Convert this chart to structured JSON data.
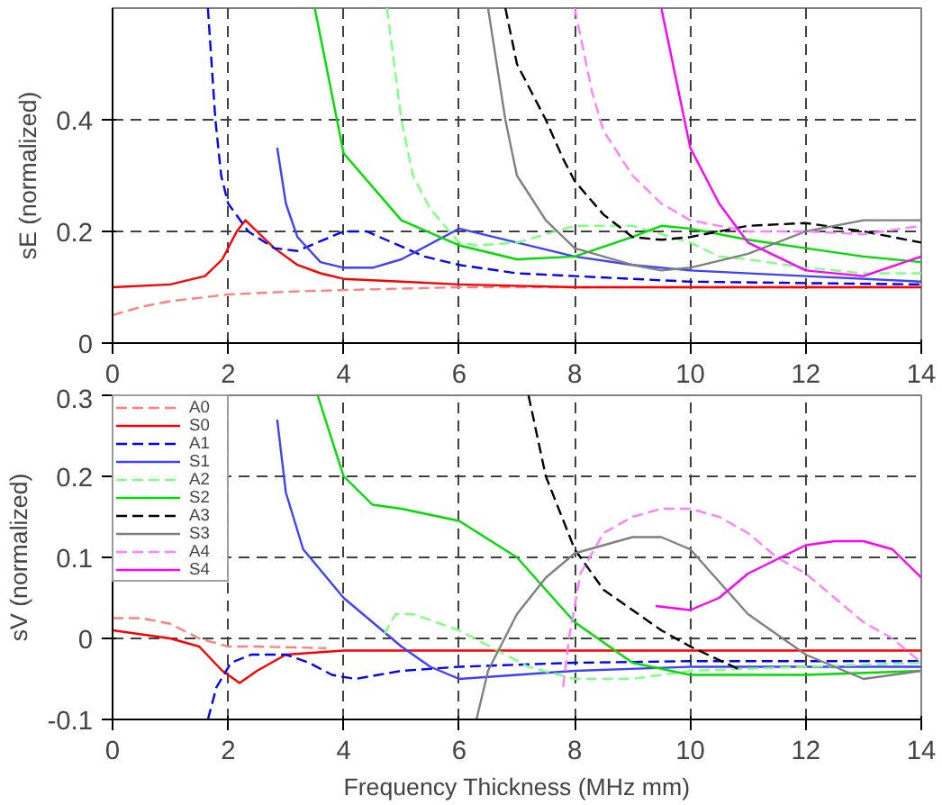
{
  "chart_data": [
    {
      "type": "line",
      "ylabel": "sE (normalized)",
      "xlim": [
        0,
        14
      ],
      "ylim": [
        0,
        0.6
      ],
      "xticks": [
        0,
        2,
        4,
        6,
        8,
        10,
        12,
        14
      ],
      "yticks": [
        0,
        0.2,
        0.4
      ],
      "grid": true,
      "legend": false,
      "series": [
        {
          "color": "#ff8080",
          "line_style": "dashed",
          "x": [
            0,
            0.5,
            1,
            2,
            3,
            4,
            6,
            8,
            10,
            12,
            14
          ],
          "values": [
            0.05,
            0.065,
            0.075,
            0.087,
            0.092,
            0.095,
            0.1,
            0.1,
            0.1,
            0.1,
            0.1
          ]
        },
        {
          "color": "#ff0000",
          "line_style": "solid",
          "x": [
            0,
            1,
            1.6,
            1.9,
            2.15,
            2.3,
            2.5,
            2.8,
            3.2,
            3.6,
            4,
            5,
            6,
            8,
            14
          ],
          "values": [
            0.1,
            0.105,
            0.12,
            0.15,
            0.2,
            0.22,
            0.2,
            0.17,
            0.14,
            0.125,
            0.115,
            0.11,
            0.105,
            0.1,
            0.1
          ]
        },
        {
          "color": "#0000ff",
          "line_style": "dashed",
          "x": [
            1.65,
            1.78,
            1.88,
            2.0,
            2.35,
            2.8,
            3.2,
            4.0,
            4.4,
            5.4,
            6,
            7,
            8,
            10,
            14
          ],
          "values": [
            0.6,
            0.4,
            0.3,
            0.25,
            0.2,
            0.17,
            0.165,
            0.2,
            0.2,
            0.155,
            0.14,
            0.125,
            0.12,
            0.11,
            0.105
          ]
        },
        {
          "color": "#4040ff",
          "line_style": "solid",
          "x": [
            2.85,
            3.0,
            3.2,
            3.6,
            4.0,
            4.5,
            5,
            6,
            7,
            8,
            9,
            10,
            12,
            14
          ],
          "values": [
            0.35,
            0.25,
            0.19,
            0.145,
            0.135,
            0.135,
            0.15,
            0.205,
            0.18,
            0.155,
            0.14,
            0.13,
            0.12,
            0.11
          ]
        },
        {
          "color": "#80ff80",
          "line_style": "dashed",
          "x": [
            4.75,
            5.0,
            5.2,
            5.5,
            6,
            6.3,
            7,
            8,
            9,
            10,
            10.5,
            11,
            12,
            13,
            14
          ],
          "values": [
            0.6,
            0.4,
            0.3,
            0.24,
            0.18,
            0.175,
            0.18,
            0.21,
            0.21,
            0.18,
            0.155,
            0.15,
            0.135,
            0.125,
            0.125
          ]
        },
        {
          "color": "#00dd00",
          "line_style": "solid",
          "x": [
            3.5,
            4,
            5,
            6,
            7,
            8,
            9,
            9.5,
            10,
            11,
            12,
            13,
            14
          ],
          "values": [
            0.6,
            0.34,
            0.22,
            0.175,
            0.15,
            0.155,
            0.19,
            0.21,
            0.205,
            0.185,
            0.17,
            0.155,
            0.145
          ]
        },
        {
          "color": "#000000",
          "line_style": "dashed",
          "x": [
            6.8,
            7,
            7.5,
            7.8,
            8,
            8.5,
            9,
            9.5,
            10,
            11,
            12,
            13,
            14
          ],
          "values": [
            0.6,
            0.5,
            0.4,
            0.33,
            0.29,
            0.23,
            0.19,
            0.185,
            0.19,
            0.21,
            0.215,
            0.2,
            0.18
          ]
        },
        {
          "color": "#808080",
          "line_style": "solid",
          "x": [
            6.5,
            6.8,
            7,
            7.5,
            8,
            9,
            9.5,
            10,
            11,
            12,
            13,
            14
          ],
          "values": [
            0.6,
            0.4,
            0.3,
            0.22,
            0.17,
            0.14,
            0.13,
            0.135,
            0.16,
            0.2,
            0.22,
            0.22
          ]
        },
        {
          "color": "#ff80ff",
          "line_style": "dashed",
          "x": [
            8,
            8.3,
            8.5,
            9,
            9.5,
            10,
            11,
            12,
            13,
            14
          ],
          "values": [
            0.6,
            0.45,
            0.38,
            0.3,
            0.25,
            0.22,
            0.2,
            0.2,
            0.195,
            0.21
          ]
        },
        {
          "color": "#ff00ff",
          "line_style": "solid",
          "x": [
            9.5,
            10,
            10.5,
            11,
            12,
            13,
            14
          ],
          "values": [
            0.6,
            0.35,
            0.25,
            0.18,
            0.13,
            0.12,
            0.155
          ]
        }
      ]
    },
    {
      "type": "line",
      "xlabel": "Frequency Thickness (MHz mm)",
      "ylabel": "sV (normalized)",
      "xlim": [
        0,
        14
      ],
      "ylim": [
        -0.1,
        0.3
      ],
      "xticks": [
        0,
        2,
        4,
        6,
        8,
        10,
        12,
        14
      ],
      "yticks": [
        -0.1,
        0,
        0.1,
        0.2,
        0.3
      ],
      "grid": true,
      "legend": "top left",
      "series": [
        {
          "name": "A0",
          "color": "#ff8080",
          "line_style": "dashed",
          "x": [
            0,
            0.5,
            1,
            1.5,
            2,
            2.5,
            3.7
          ],
          "values": [
            0.025,
            0.025,
            0.018,
            0.0,
            -0.01,
            -0.01,
            -0.012
          ]
        },
        {
          "name": "S0",
          "color": "#ff0000",
          "line_style": "solid",
          "x": [
            0,
            1,
            1.5,
            1.9,
            2.2,
            2.5,
            3,
            4,
            14
          ],
          "values": [
            0.01,
            0.0,
            -0.01,
            -0.04,
            -0.055,
            -0.04,
            -0.02,
            -0.015,
            -0.015
          ]
        },
        {
          "name": "A1",
          "color": "#0000ff",
          "line_style": "dashed",
          "x": [
            1.65,
            1.8,
            2.05,
            2.4,
            3,
            3.4,
            3.8,
            4.2,
            5,
            6,
            8,
            10,
            14
          ],
          "values": [
            -0.1,
            -0.06,
            -0.03,
            -0.02,
            -0.02,
            -0.03,
            -0.045,
            -0.05,
            -0.04,
            -0.035,
            -0.03,
            -0.028,
            -0.028
          ]
        },
        {
          "name": "S1",
          "color": "#4040ff",
          "line_style": "solid",
          "x": [
            2.85,
            3,
            3.3,
            4,
            5,
            5.5,
            6,
            7,
            8,
            10,
            14
          ],
          "values": [
            0.27,
            0.18,
            0.11,
            0.05,
            -0.01,
            -0.035,
            -0.05,
            -0.045,
            -0.04,
            -0.035,
            -0.035
          ]
        },
        {
          "name": "A2",
          "color": "#80ff80",
          "line_style": "dashed",
          "x": [
            4.7,
            4.9,
            5.2,
            5.6,
            6,
            6.8,
            7.2,
            8,
            9,
            10,
            12,
            14
          ],
          "values": [
            0.005,
            0.03,
            0.03,
            0.02,
            0.01,
            -0.02,
            -0.035,
            -0.05,
            -0.05,
            -0.04,
            -0.035,
            -0.03
          ]
        },
        {
          "name": "S2",
          "color": "#00dd00",
          "line_style": "solid",
          "x": [
            3.55,
            4,
            4.5,
            5,
            6,
            7,
            8,
            9,
            10,
            12,
            14
          ],
          "values": [
            0.3,
            0.2,
            0.165,
            0.16,
            0.145,
            0.1,
            0.02,
            -0.03,
            -0.045,
            -0.045,
            -0.04
          ]
        },
        {
          "name": "A3",
          "color": "#000000",
          "line_style": "dashed",
          "x": [
            7.2,
            7.5,
            8,
            8.5,
            9,
            9.5,
            10,
            10.9
          ],
          "values": [
            0.3,
            0.2,
            0.11,
            0.06,
            0.035,
            0.01,
            -0.01,
            -0.04
          ]
        },
        {
          "name": "S3",
          "color": "#808080",
          "line_style": "solid",
          "x": [
            6.3,
            6.5,
            7,
            7.5,
            8,
            9,
            9.5,
            10,
            10.5,
            11,
            12,
            13,
            14
          ],
          "values": [
            -0.1,
            -0.04,
            0.03,
            0.075,
            0.105,
            0.125,
            0.125,
            0.11,
            0.07,
            0.03,
            -0.02,
            -0.05,
            -0.04
          ]
        },
        {
          "name": "A4",
          "color": "#ff80ff",
          "line_style": "dashed",
          "x": [
            7.8,
            7.9,
            8.1,
            8.5,
            9,
            9.5,
            10,
            10.5,
            11,
            11.5,
            12,
            12.5,
            13,
            13.5,
            14
          ],
          "values": [
            -0.06,
            0.0,
            0.08,
            0.13,
            0.15,
            0.16,
            0.16,
            0.15,
            0.13,
            0.1,
            0.08,
            0.05,
            0.02,
            0.0,
            -0.03
          ]
        },
        {
          "name": "S4",
          "color": "#ff00ff",
          "line_style": "solid",
          "x": [
            9.4,
            10,
            10.5,
            11,
            12,
            12.5,
            13,
            13.5,
            14
          ],
          "values": [
            0.04,
            0.035,
            0.05,
            0.08,
            0.115,
            0.12,
            0.12,
            0.11,
            0.075
          ]
        }
      ]
    }
  ]
}
